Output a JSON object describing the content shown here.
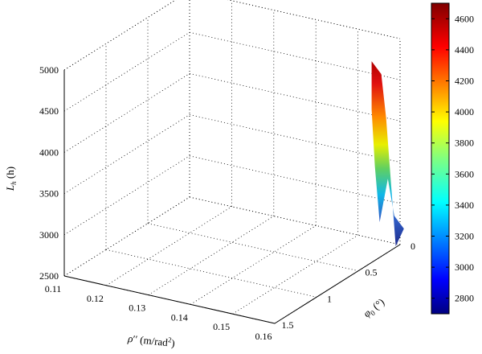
{
  "chart_data": {
    "type": "surface",
    "zlabel": "L_h (h)",
    "xlabel": "ρ'' (m/rad²)",
    "ylabel": "φ0 (°)",
    "x_ticks": [
      0.11,
      0.12,
      0.13,
      0.14,
      0.15,
      0.16
    ],
    "y_ticks": [
      0,
      0.5,
      1,
      1.5
    ],
    "z_ticks": [
      2500,
      3000,
      3500,
      4000,
      4500,
      5000
    ],
    "x_range": [
      0.11,
      0.16
    ],
    "y_range": [
      0,
      1.5
    ],
    "z_range": [
      2500,
      5000
    ],
    "colorbar_ticks": [
      2800,
      3000,
      3200,
      3400,
      3600,
      3800,
      4000,
      4200,
      4400,
      4600
    ],
    "colorbar_range": [
      2700,
      4700
    ],
    "colormap": [
      "#000080",
      "#0000ff",
      "#0080ff",
      "#00ffff",
      "#80ff80",
      "#ffff00",
      "#ff8000",
      "#ff0000",
      "#800000"
    ],
    "grid": true,
    "surface": [
      {
        "rho": 0.155,
        "phi0": 0.05,
        "Lh": 4700
      },
      {
        "rho": 0.159,
        "phi0": 0.0,
        "Lh": 2700
      }
    ]
  }
}
